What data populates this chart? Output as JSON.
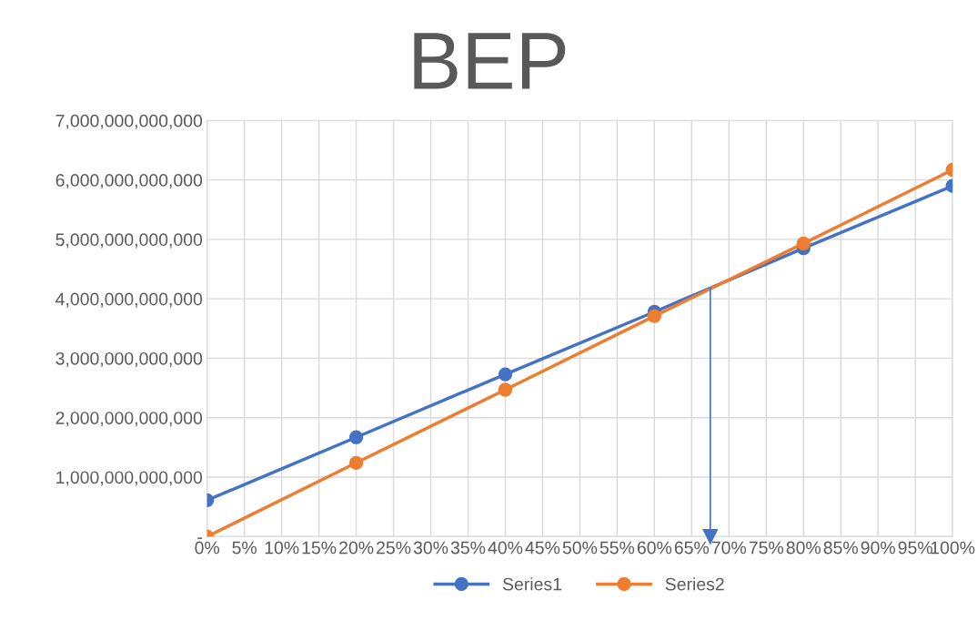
{
  "chart_data": {
    "type": "line",
    "title": "BEP",
    "x": [
      0,
      20,
      40,
      60,
      80,
      100
    ],
    "series": [
      {
        "name": "Series1",
        "color": "#4472c4",
        "values": [
          610000000000,
          1670000000000,
          2730000000000,
          3780000000000,
          4850000000000,
          5900000000000
        ]
      },
      {
        "name": "Series2",
        "color": "#ed7d31",
        "values": [
          0,
          1240000000000,
          2470000000000,
          3710000000000,
          4930000000000,
          6170000000000
        ]
      }
    ],
    "xlim": [
      0,
      100
    ],
    "xticks": [
      {
        "value": 0,
        "label": "0%"
      },
      {
        "value": 5,
        "label": "5%"
      },
      {
        "value": 10,
        "label": "10%"
      },
      {
        "value": 15,
        "label": "15%"
      },
      {
        "value": 20,
        "label": "20%"
      },
      {
        "value": 25,
        "label": "25%"
      },
      {
        "value": 30,
        "label": "30%"
      },
      {
        "value": 35,
        "label": "35%"
      },
      {
        "value": 40,
        "label": "40%"
      },
      {
        "value": 45,
        "label": "45%"
      },
      {
        "value": 50,
        "label": "50%"
      },
      {
        "value": 55,
        "label": "55%"
      },
      {
        "value": 60,
        "label": "60%"
      },
      {
        "value": 65,
        "label": "65%"
      },
      {
        "value": 70,
        "label": "70%"
      },
      {
        "value": 75,
        "label": "75%"
      },
      {
        "value": 80,
        "label": "80%"
      },
      {
        "value": 85,
        "label": "85%"
      },
      {
        "value": 90,
        "label": "90%"
      },
      {
        "value": 95,
        "label": "95%"
      },
      {
        "value": 100,
        "label": "100%"
      }
    ],
    "ylim": [
      0,
      7000000000000
    ],
    "yticks": [
      {
        "value": 0,
        "label": "-"
      },
      {
        "value": 1000000000000,
        "label": "1,000,000,000,000"
      },
      {
        "value": 2000000000000,
        "label": "2,000,000,000,000"
      },
      {
        "value": 3000000000000,
        "label": "3,000,000,000,000"
      },
      {
        "value": 4000000000000,
        "label": "4,000,000,000,000"
      },
      {
        "value": 5000000000000,
        "label": "5,000,000,000,000"
      },
      {
        "value": 6000000000000,
        "label": "6,000,000,000,000"
      },
      {
        "value": 7000000000000,
        "label": "7,000,000,000,000"
      }
    ],
    "ref_lines": [
      {
        "axis": "x",
        "value": 67.5,
        "color": "#4472c4",
        "line_style": "solid"
      }
    ],
    "grid": true,
    "legend": "bottom",
    "marker": "circle",
    "line_style": "solid"
  }
}
